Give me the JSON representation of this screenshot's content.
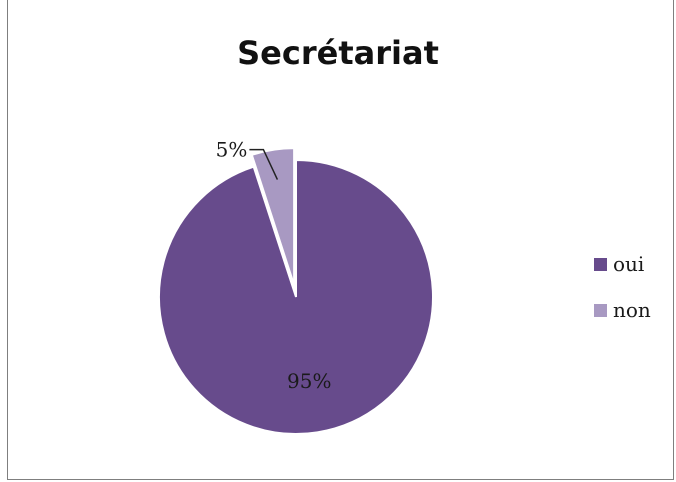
{
  "chart_data": {
    "type": "pie",
    "title": "Secrétariat",
    "categories": [
      "oui",
      "non"
    ],
    "values": [
      95,
      5
    ],
    "data_labels": [
      "95%",
      "5%"
    ],
    "colors": [
      "#674b8c",
      "#a899c2"
    ],
    "legend_position": "right",
    "exploded_slice": "non"
  }
}
